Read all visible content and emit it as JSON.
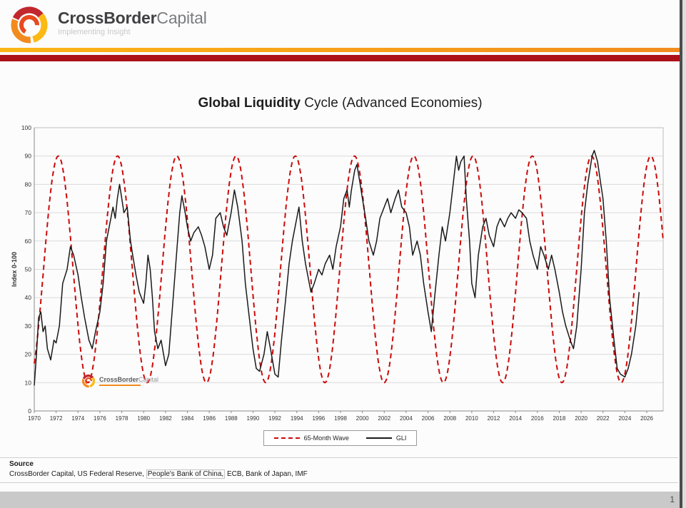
{
  "page": {
    "page_number": "1"
  },
  "header": {
    "brand_bold": "CrossBorder",
    "brand_light": "Capital",
    "tagline": "Implementing Insight"
  },
  "colors": {
    "stripe_orange": "#f28b1e",
    "stripe_red": "#ac1118",
    "wave_red": "#cc0a0a",
    "gli_black": "#1a1a1a"
  },
  "chart": {
    "title_bold": "Global Liquidity",
    "title_rest": " Cycle (Advanced Economies)",
    "y_axis_label": "Index 0-100",
    "y_ticks": [
      0,
      10,
      20,
      30,
      40,
      50,
      60,
      70,
      80,
      90,
      100
    ],
    "x_ticks": [
      1970,
      1972,
      1974,
      1976,
      1978,
      1980,
      1982,
      1984,
      1986,
      1988,
      1990,
      1992,
      1994,
      1996,
      1998,
      2000,
      2002,
      2004,
      2006,
      2008,
      2010,
      2012,
      2014,
      2016,
      2018,
      2020,
      2022,
      2024,
      2026
    ],
    "legend": [
      {
        "label": "65-Month Wave",
        "color": "#cc0a0a",
        "style": "dashed"
      },
      {
        "label": "GLI",
        "color": "#1a1a1a",
        "style": "solid"
      }
    ],
    "watermark_bold": "CrossBorder",
    "watermark_light": "Capital"
  },
  "chart_data": {
    "type": "line",
    "title": "Global Liquidity Cycle (Advanced Economies)",
    "xlabel": "",
    "ylabel": "Index 0-100",
    "ylim": [
      0,
      100
    ],
    "xlim": [
      1970,
      2027.5
    ],
    "grid": "horizontal",
    "legend_position": "bottom-center",
    "series": [
      {
        "name": "65-Month Wave",
        "color": "#cc0a0a",
        "style": "dashed",
        "wave": {
          "center": 50,
          "amplitude": 40,
          "period_months": 65,
          "peak_year": 1972.2,
          "min": 10,
          "max": 90
        }
      },
      {
        "name": "GLI",
        "color": "#1a1a1a",
        "style": "solid",
        "points": [
          [
            1970,
            9
          ],
          [
            1970.2,
            20
          ],
          [
            1970.4,
            33
          ],
          [
            1970.6,
            35
          ],
          [
            1970.8,
            28
          ],
          [
            1971,
            30
          ],
          [
            1971.2,
            22
          ],
          [
            1971.5,
            18
          ],
          [
            1971.8,
            25
          ],
          [
            1972,
            24
          ],
          [
            1972.3,
            30
          ],
          [
            1972.6,
            45
          ],
          [
            1973,
            50
          ],
          [
            1973.3,
            58
          ],
          [
            1973.6,
            55
          ],
          [
            1974,
            48
          ],
          [
            1974.3,
            40
          ],
          [
            1974.6,
            33
          ],
          [
            1975,
            25
          ],
          [
            1975.3,
            22
          ],
          [
            1975.6,
            28
          ],
          [
            1976,
            35
          ],
          [
            1976.3,
            45
          ],
          [
            1976.6,
            60
          ],
          [
            1977,
            68
          ],
          [
            1977.2,
            72
          ],
          [
            1977.4,
            68
          ],
          [
            1977.6,
            75
          ],
          [
            1977.8,
            80
          ],
          [
            1978,
            75
          ],
          [
            1978.2,
            70
          ],
          [
            1978.5,
            72
          ],
          [
            1978.8,
            60
          ],
          [
            1979,
            55
          ],
          [
            1979.3,
            48
          ],
          [
            1979.6,
            42
          ],
          [
            1980,
            38
          ],
          [
            1980.2,
            45
          ],
          [
            1980.4,
            55
          ],
          [
            1980.6,
            50
          ],
          [
            1980.8,
            40
          ],
          [
            1981,
            28
          ],
          [
            1981.3,
            22
          ],
          [
            1981.6,
            25
          ],
          [
            1982,
            16
          ],
          [
            1982.3,
            20
          ],
          [
            1982.6,
            35
          ],
          [
            1983,
            55
          ],
          [
            1983.3,
            70
          ],
          [
            1983.5,
            76
          ],
          [
            1983.8,
            70
          ],
          [
            1984,
            65
          ],
          [
            1984.3,
            60
          ],
          [
            1984.6,
            63
          ],
          [
            1985,
            65
          ],
          [
            1985.3,
            62
          ],
          [
            1985.6,
            58
          ],
          [
            1986,
            50
          ],
          [
            1986.3,
            55
          ],
          [
            1986.6,
            68
          ],
          [
            1987,
            70
          ],
          [
            1987.3,
            65
          ],
          [
            1987.6,
            62
          ],
          [
            1988,
            70
          ],
          [
            1988.3,
            78
          ],
          [
            1988.6,
            72
          ],
          [
            1989,
            60
          ],
          [
            1989.3,
            45
          ],
          [
            1989.6,
            35
          ],
          [
            1990,
            22
          ],
          [
            1990.3,
            15
          ],
          [
            1990.6,
            14
          ],
          [
            1991,
            20
          ],
          [
            1991.3,
            28
          ],
          [
            1991.6,
            22
          ],
          [
            1992,
            13
          ],
          [
            1992.3,
            12
          ],
          [
            1992.6,
            25
          ],
          [
            1993,
            40
          ],
          [
            1993.3,
            52
          ],
          [
            1993.6,
            60
          ],
          [
            1994,
            68
          ],
          [
            1994.2,
            72
          ],
          [
            1994.5,
            60
          ],
          [
            1994.8,
            52
          ],
          [
            1995,
            48
          ],
          [
            1995.3,
            42
          ],
          [
            1995.6,
            45
          ],
          [
            1996,
            50
          ],
          [
            1996.3,
            48
          ],
          [
            1996.6,
            52
          ],
          [
            1997,
            55
          ],
          [
            1997.3,
            50
          ],
          [
            1997.6,
            58
          ],
          [
            1998,
            65
          ],
          [
            1998.3,
            75
          ],
          [
            1998.6,
            78
          ],
          [
            1998.8,
            72
          ],
          [
            1999,
            78
          ],
          [
            1999.3,
            85
          ],
          [
            1999.5,
            87
          ],
          [
            1999.8,
            80
          ],
          [
            2000,
            75
          ],
          [
            2000.3,
            68
          ],
          [
            2000.6,
            60
          ],
          [
            2001,
            55
          ],
          [
            2001.3,
            60
          ],
          [
            2001.6,
            68
          ],
          [
            2002,
            72
          ],
          [
            2002.3,
            75
          ],
          [
            2002.6,
            70
          ],
          [
            2003,
            75
          ],
          [
            2003.3,
            78
          ],
          [
            2003.6,
            72
          ],
          [
            2004,
            70
          ],
          [
            2004.3,
            65
          ],
          [
            2004.6,
            55
          ],
          [
            2005,
            60
          ],
          [
            2005.3,
            55
          ],
          [
            2005.6,
            45
          ],
          [
            2006,
            35
          ],
          [
            2006.3,
            28
          ],
          [
            2006.6,
            40
          ],
          [
            2007,
            55
          ],
          [
            2007.3,
            65
          ],
          [
            2007.6,
            60
          ],
          [
            2008,
            70
          ],
          [
            2008.3,
            80
          ],
          [
            2008.6,
            90
          ],
          [
            2008.8,
            85
          ],
          [
            2009,
            88
          ],
          [
            2009.3,
            90
          ],
          [
            2009.5,
            75
          ],
          [
            2009.8,
            60
          ],
          [
            2010,
            45
          ],
          [
            2010.3,
            40
          ],
          [
            2010.6,
            55
          ],
          [
            2011,
            65
          ],
          [
            2011.3,
            68
          ],
          [
            2011.6,
            62
          ],
          [
            2012,
            58
          ],
          [
            2012.3,
            65
          ],
          [
            2012.6,
            68
          ],
          [
            2013,
            65
          ],
          [
            2013.3,
            68
          ],
          [
            2013.6,
            70
          ],
          [
            2014,
            68
          ],
          [
            2014.3,
            71
          ],
          [
            2014.6,
            70
          ],
          [
            2015,
            68
          ],
          [
            2015.3,
            60
          ],
          [
            2015.6,
            55
          ],
          [
            2016,
            50
          ],
          [
            2016.3,
            58
          ],
          [
            2016.6,
            55
          ],
          [
            2017,
            50
          ],
          [
            2017.3,
            55
          ],
          [
            2017.6,
            50
          ],
          [
            2018,
            42
          ],
          [
            2018.3,
            35
          ],
          [
            2018.6,
            30
          ],
          [
            2019,
            25
          ],
          [
            2019.3,
            22
          ],
          [
            2019.6,
            30
          ],
          [
            2020,
            50
          ],
          [
            2020.3,
            70
          ],
          [
            2020.6,
            80
          ],
          [
            2021,
            90
          ],
          [
            2021.2,
            92
          ],
          [
            2021.5,
            88
          ],
          [
            2021.8,
            80
          ],
          [
            2022,
            75
          ],
          [
            2022.3,
            60
          ],
          [
            2022.6,
            40
          ],
          [
            2023,
            25
          ],
          [
            2023.3,
            15
          ],
          [
            2023.6,
            13
          ],
          [
            2024,
            12
          ],
          [
            2024.3,
            15
          ],
          [
            2024.6,
            20
          ],
          [
            2025,
            30
          ],
          [
            2025.3,
            42
          ]
        ]
      }
    ]
  },
  "footer": {
    "source_label": "Source",
    "source_before": "CrossBorder Capital, US Federal Reserve, ",
    "source_highlight": "People's Bank of China,",
    "source_after": " ECB, Bank of Japan, IMF"
  }
}
